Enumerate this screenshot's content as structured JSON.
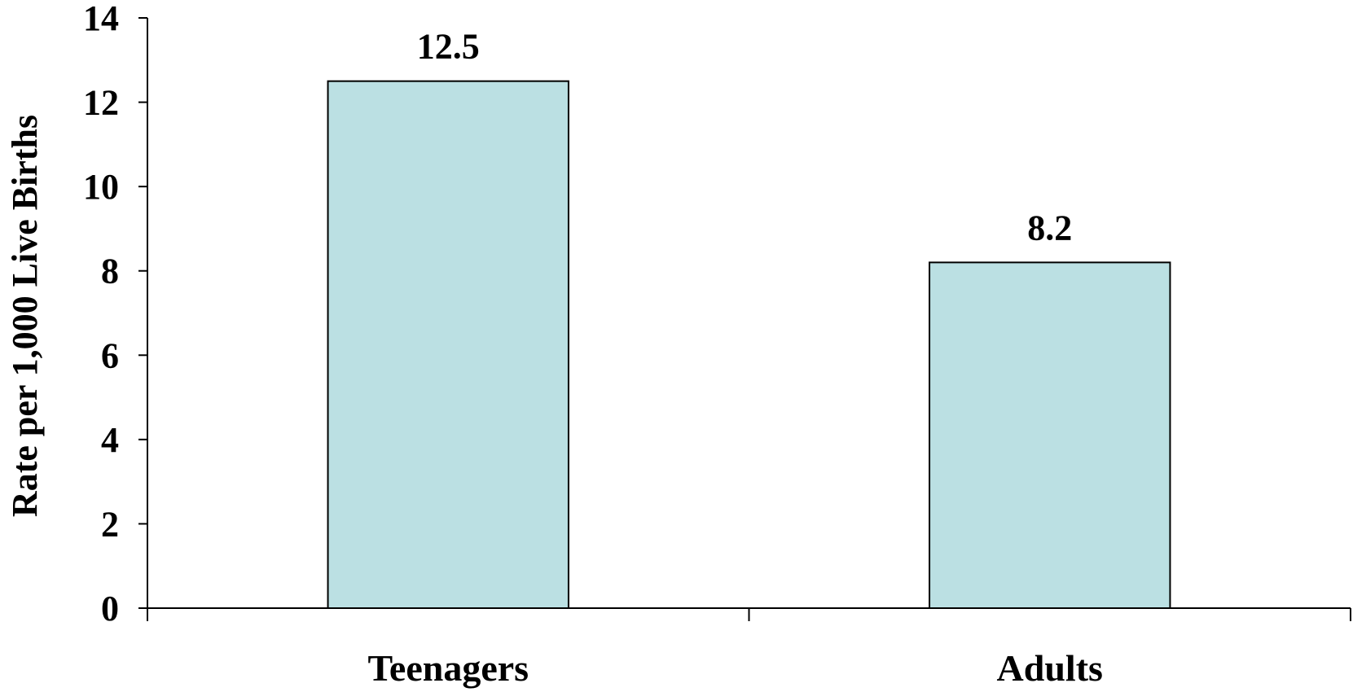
{
  "chart_data": {
    "type": "bar",
    "categories": [
      "Teenagers",
      "Adults"
    ],
    "values": [
      12.5,
      8.2
    ],
    "data_labels": [
      "12.5",
      "8.2"
    ],
    "title": "",
    "xlabel": "",
    "ylabel": "Rate per 1,000 Live Births",
    "ylim": [
      0,
      14
    ],
    "yticks": [
      0,
      2,
      4,
      6,
      8,
      10,
      12,
      14
    ],
    "grid": false,
    "legend": "none",
    "colors": {
      "bar_fill": "#bbe0e3",
      "bar_stroke": "#000000",
      "axis": "#000000",
      "text": "#000000"
    }
  }
}
